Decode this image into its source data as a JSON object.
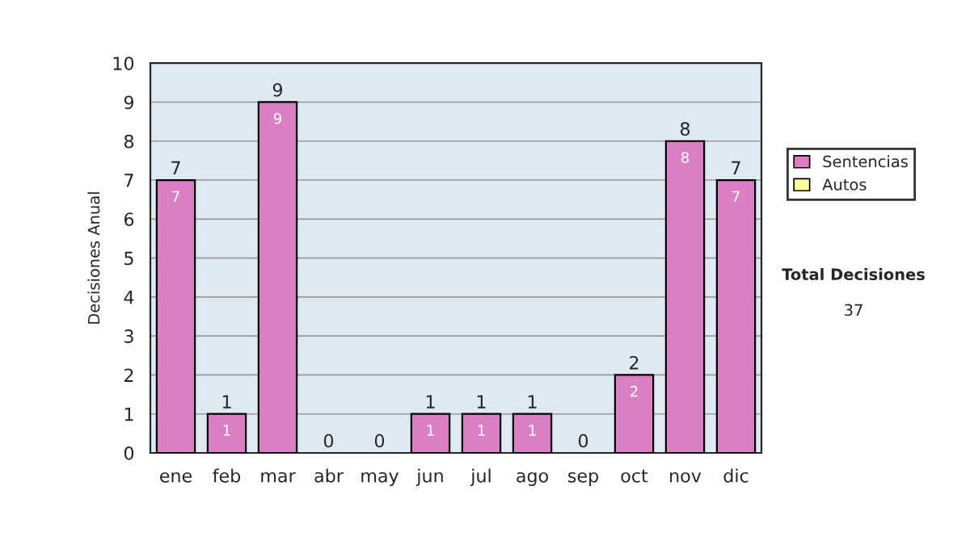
{
  "chart_data": {
    "type": "bar",
    "stacked": true,
    "ylabel": "Decisiones Anual",
    "categories": [
      "ene",
      "feb",
      "mar",
      "abr",
      "may",
      "jun",
      "jul",
      "ago",
      "sep",
      "oct",
      "nov",
      "dic"
    ],
    "series": [
      {
        "name": "Sentencias",
        "color": "#db7fc4",
        "values": [
          7,
          1,
          9,
          0,
          0,
          1,
          1,
          1,
          0,
          2,
          8,
          7
        ],
        "value_labels": [
          "7",
          "1",
          "9",
          null,
          null,
          "1",
          "1",
          "1",
          null,
          "2",
          "8",
          "7"
        ]
      },
      {
        "name": "Autos",
        "color": "#ffff99",
        "values": [
          0,
          0,
          0,
          0,
          0,
          0,
          0,
          0,
          0,
          0,
          0,
          0
        ]
      }
    ],
    "totals": [
      "7",
      "1",
      "9",
      "0",
      "0",
      "1",
      "1",
      "1",
      "0",
      "2",
      "8",
      "7"
    ],
    "ylim": [
      0,
      10
    ],
    "yticks": [
      0,
      1,
      2,
      3,
      4,
      5,
      6,
      7,
      8,
      9,
      10
    ],
    "grid": "y",
    "legend": "right",
    "annotations": [
      "Total Decisiones",
      "37"
    ]
  }
}
